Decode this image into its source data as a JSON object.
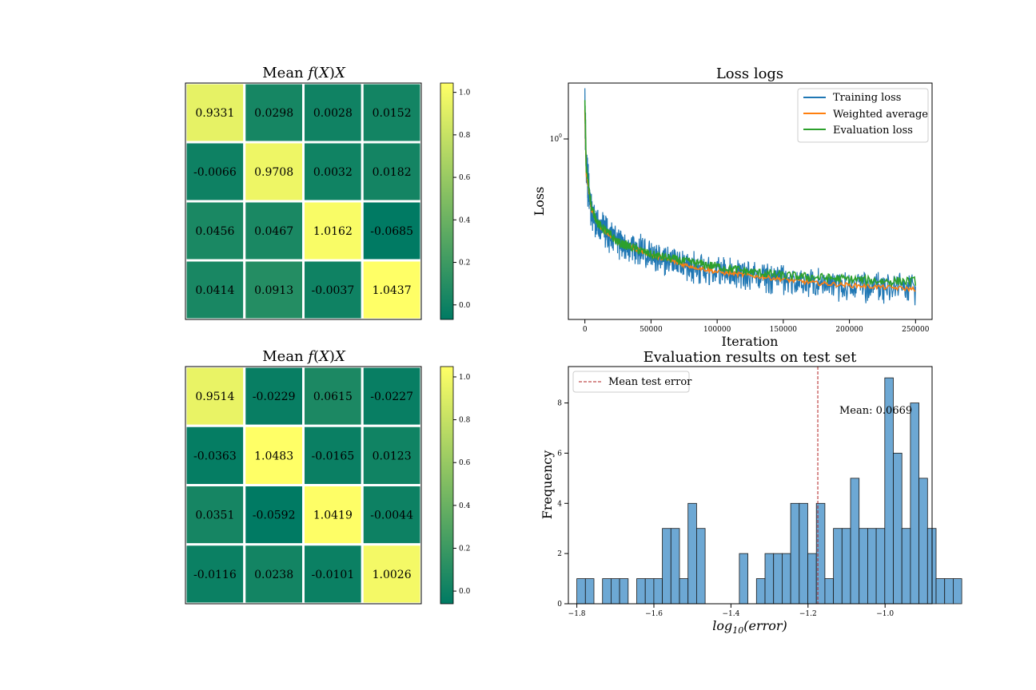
{
  "colors": {
    "training": "#1f77b4",
    "weighted": "#ff7f0e",
    "evaluation": "#2ca02c",
    "hist": "#5d9ecf",
    "mean_line": "#b22222",
    "cmap_low": "#007a63",
    "cmap_mid": "#7fbc62",
    "cmap_high": "#ffff66"
  },
  "chart_data": [
    {
      "type": "heatmap",
      "title": "Mean f(X)X",
      "title_parts": {
        "prefix": "Mean ",
        "func": "f",
        "open": "(",
        "arg": "X",
        "close": ")",
        "suffix": "X"
      },
      "values": [
        [
          0.9331,
          0.0298,
          0.0028,
          0.0152
        ],
        [
          -0.0066,
          0.9708,
          0.0032,
          0.0182
        ],
        [
          0.0456,
          0.0467,
          1.0162,
          -0.0685
        ],
        [
          0.0414,
          0.0913,
          -0.0037,
          1.0437
        ]
      ],
      "labels": [
        [
          "0.9331",
          "0.0298",
          "0.0028",
          "0.0152"
        ],
        [
          "-0.0066",
          "0.9708",
          "0.0032",
          "0.0182"
        ],
        [
          "0.0456",
          "0.0467",
          "1.0162",
          "-0.0685"
        ],
        [
          "0.0414",
          "0.0913",
          "-0.0037",
          "1.0437"
        ]
      ],
      "vmin": -0.0685,
      "vmax": 1.0437,
      "colorbar_ticks": [
        "0.0",
        "0.2",
        "0.4",
        "0.6",
        "0.8",
        "1.0"
      ],
      "colorbar_tick_values": [
        0,
        0.2,
        0.4,
        0.6,
        0.8,
        1.0
      ]
    },
    {
      "type": "line",
      "title": "Loss logs",
      "xlabel": "Iteration",
      "ylabel": "Loss",
      "xlim": [
        -12500,
        262500
      ],
      "x_ticks": [
        "0",
        "50000",
        "100000",
        "150000",
        "200000",
        "250000"
      ],
      "x_tick_values": [
        0,
        50000,
        100000,
        150000,
        200000,
        250000
      ],
      "y_scale": "log",
      "y_tick_label": {
        "base": "10",
        "exp": "0"
      },
      "y_tick_value": 1.0,
      "grid": false,
      "legend_position": "top-right",
      "series": [
        {
          "name": "Training loss",
          "x": [
            0,
            1000,
            5000,
            10000,
            25000,
            50000,
            75000,
            100000,
            125000,
            150000,
            175000,
            200000,
            225000,
            250000
          ],
          "y": [
            1.25,
            0.8,
            0.62,
            0.56,
            0.5,
            0.46,
            0.43,
            0.41,
            0.4,
            0.39,
            0.38,
            0.375,
            0.37,
            0.365
          ],
          "band_half_width": [
            0.1,
            0.1,
            0.07,
            0.06,
            0.06,
            0.055,
            0.055,
            0.055,
            0.055,
            0.055,
            0.055,
            0.055,
            0.055,
            0.055
          ]
        },
        {
          "name": "Weighted average",
          "x": [
            0,
            1000,
            5000,
            10000,
            25000,
            50000,
            75000,
            100000,
            125000,
            150000,
            175000,
            200000,
            225000,
            250000
          ],
          "y": [
            1.2,
            0.79,
            0.62,
            0.56,
            0.5,
            0.46,
            0.43,
            0.41,
            0.4,
            0.39,
            0.38,
            0.375,
            0.37,
            0.365
          ]
        },
        {
          "name": "Evaluation loss",
          "x": [
            0,
            1000,
            5000,
            10000,
            25000,
            50000,
            75000,
            100000,
            125000,
            150000,
            175000,
            200000,
            225000,
            250000
          ],
          "y": [
            1.28,
            0.82,
            0.63,
            0.565,
            0.5,
            0.46,
            0.44,
            0.425,
            0.41,
            0.4,
            0.395,
            0.39,
            0.385,
            0.385
          ]
        }
      ]
    },
    {
      "type": "heatmap",
      "title": "Mean f(X)X",
      "title_parts": {
        "prefix": "Mean ",
        "func": "f",
        "open": "(",
        "arg": "X",
        "close": ")",
        "suffix": "X"
      },
      "values": [
        [
          0.9514,
          -0.0229,
          0.0615,
          -0.0227
        ],
        [
          -0.0363,
          1.0483,
          -0.0165,
          0.0123
        ],
        [
          0.0351,
          -0.0592,
          1.0419,
          -0.0044
        ],
        [
          -0.0116,
          0.0238,
          -0.0101,
          1.0026
        ]
      ],
      "labels": [
        [
          "0.9514",
          "-0.0229",
          "0.0615",
          "-0.0227"
        ],
        [
          "-0.0363",
          "1.0483",
          "-0.0165",
          "0.0123"
        ],
        [
          "0.0351",
          "-0.0592",
          "1.0419",
          "-0.0044"
        ],
        [
          "-0.0116",
          "0.0238",
          "-0.0101",
          "1.0026"
        ]
      ],
      "vmin": -0.0592,
      "vmax": 1.0483,
      "colorbar_ticks": [
        "0.0",
        "0.2",
        "0.4",
        "0.6",
        "0.8",
        "1.0"
      ],
      "colorbar_tick_values": [
        0,
        0.2,
        0.4,
        0.6,
        0.8,
        1.0
      ]
    },
    {
      "type": "bar",
      "subtype": "histogram",
      "title": "Evaluation results on test set",
      "xlabel_parts": {
        "func": "log",
        "sub": "10",
        "arg": "(error)"
      },
      "ylabel": "Frequency",
      "xlim": [
        -1.822,
        -0.878
      ],
      "ylim": [
        0,
        9.45
      ],
      "x_ticks": [
        "−1.8",
        "−1.6",
        "−1.4",
        "−1.2",
        "−1.0"
      ],
      "x_tick_values": [
        -1.8,
        -1.6,
        -1.4,
        -1.2,
        -1.0
      ],
      "y_ticks": [
        "0",
        "2",
        "4",
        "6",
        "8"
      ],
      "y_tick_values": [
        0,
        2,
        4,
        6,
        8
      ],
      "bin_start": -1.8,
      "bin_width": 0.0222,
      "counts": [
        1,
        1,
        0,
        1,
        1,
        1,
        0,
        1,
        1,
        1,
        3,
        3,
        1,
        4,
        3,
        0,
        0,
        0,
        0,
        2,
        0,
        1,
        2,
        2,
        2,
        4,
        4,
        2,
        4,
        1,
        3,
        3,
        5,
        3,
        3,
        3,
        9,
        6,
        3,
        8,
        5,
        3,
        1,
        1,
        1
      ],
      "mean_line_x": -1.1746,
      "mean_label": "Mean: 0.0669",
      "legend_label": "Mean test error",
      "legend_position": "top-left"
    }
  ]
}
